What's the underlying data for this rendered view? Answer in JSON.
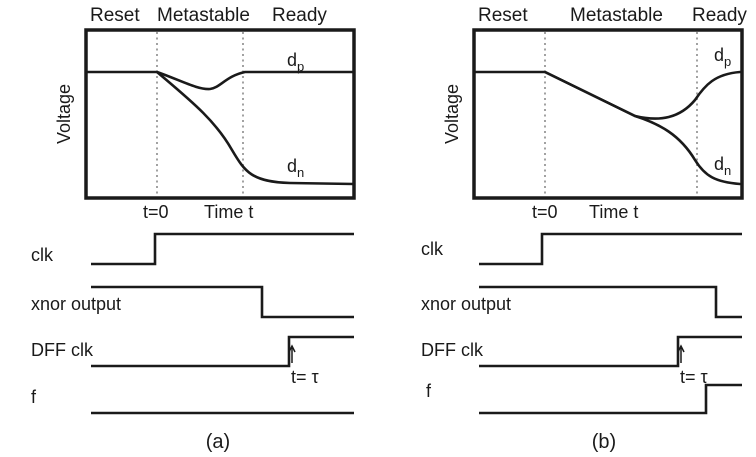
{
  "phases": {
    "reset": "Reset",
    "metastable": "Metastable",
    "ready": "Ready"
  },
  "axes": {
    "y_label": "Voltage",
    "x_origin": "t=0",
    "x_label": "Time t"
  },
  "curves": {
    "dp": {
      "base": "d",
      "sub": "p"
    },
    "dn": {
      "base": "d",
      "sub": "n"
    }
  },
  "signals": {
    "clk": "clk",
    "xnor": "xnor output",
    "dff": "DFF clk",
    "f": "f"
  },
  "tau_label": {
    "prefix": "t= ",
    "symbol": "τ"
  },
  "panels": [
    {
      "caption": "(a)"
    },
    {
      "caption": "(b)"
    }
  ]
}
